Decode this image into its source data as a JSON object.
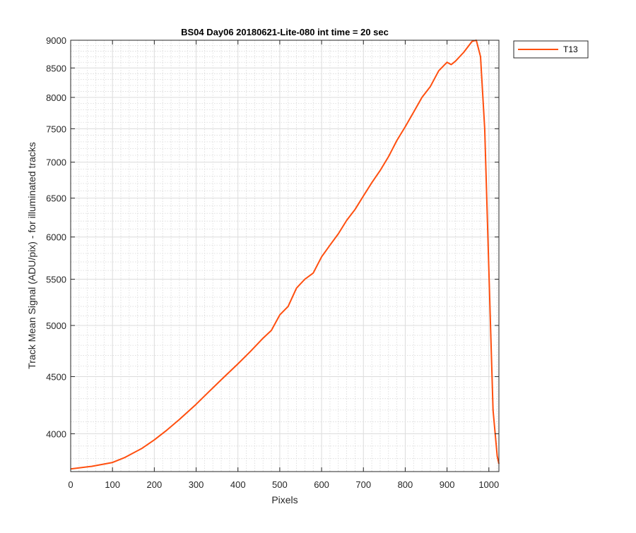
{
  "chart_data": {
    "type": "line",
    "title": "BS04 Day06 20180621-Lite-080 int time = 20 sec",
    "xlabel": "Pixels",
    "ylabel": "Track Mean Signal (ADU/pix) - for illuminated tracks",
    "xlim": [
      0,
      1024
    ],
    "ylim": [
      3700,
      9000
    ],
    "y_scale": "log",
    "x_ticks": [
      0,
      100,
      200,
      300,
      400,
      500,
      600,
      700,
      800,
      900,
      1000
    ],
    "x_tick_labels": [
      "0",
      "100",
      "200",
      "300",
      "400",
      "500",
      "600",
      "700",
      "800",
      "900",
      "1000"
    ],
    "y_ticks": [
      4000,
      4500,
      5000,
      5500,
      6000,
      6500,
      7000,
      7500,
      8000,
      8500,
      9000
    ],
    "y_tick_labels": [
      "4000",
      "4500",
      "5000",
      "5500",
      "6000",
      "6500",
      "7000",
      "7500",
      "8000",
      "8500",
      "9000"
    ],
    "grid": true,
    "minor_grid": true,
    "legend_position": "outside-top-right",
    "series": [
      {
        "name": "T13",
        "color": "#ff4f0f",
        "x": [
          0,
          50,
          100,
          130,
          170,
          200,
          230,
          260,
          300,
          330,
          360,
          400,
          430,
          460,
          480,
          500,
          520,
          540,
          560,
          580,
          600,
          620,
          640,
          660,
          680,
          700,
          720,
          740,
          760,
          780,
          800,
          820,
          840,
          860,
          880,
          900,
          910,
          920,
          940,
          960,
          970,
          980,
          990,
          1000,
          1010,
          1020,
          1024
        ],
        "values": [
          3720,
          3740,
          3770,
          3810,
          3880,
          3950,
          4030,
          4120,
          4250,
          4360,
          4470,
          4620,
          4740,
          4870,
          4950,
          5110,
          5200,
          5400,
          5500,
          5570,
          5760,
          5900,
          6040,
          6210,
          6350,
          6530,
          6710,
          6880,
          7080,
          7320,
          7530,
          7760,
          8000,
          8180,
          8450,
          8600,
          8560,
          8620,
          8780,
          8980,
          9000,
          8700,
          7500,
          5600,
          4200,
          3820,
          3760
        ]
      }
    ]
  }
}
